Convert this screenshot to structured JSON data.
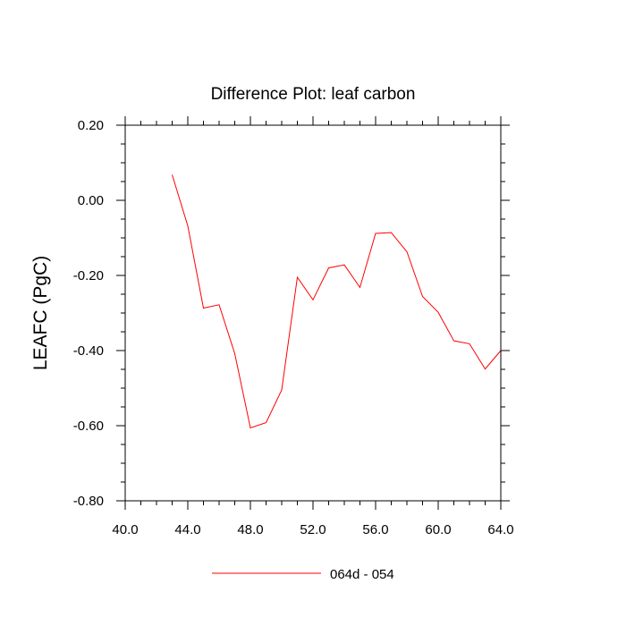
{
  "chart_data": {
    "type": "line",
    "title": "Difference Plot: leaf carbon",
    "xlabel": "",
    "ylabel": "LEAFC  (PgC)",
    "xlim": [
      40,
      64
    ],
    "ylim": [
      -0.8,
      0.2
    ],
    "x_ticks": [
      40,
      44,
      48,
      52,
      56,
      60,
      64
    ],
    "x_tick_labels": [
      "40.0",
      "44.0",
      "48.0",
      "52.0",
      "56.0",
      "60.0",
      "64.0"
    ],
    "y_ticks": [
      -0.8,
      -0.6,
      -0.4,
      -0.2,
      0.0,
      0.2
    ],
    "y_tick_labels": [
      "-0.80",
      "-0.60",
      "-0.40",
      "-0.20",
      "0.00",
      "0.20"
    ],
    "grid": false,
    "legend_position": "bottom",
    "series": [
      {
        "name": "064d - 054",
        "color": "#ff0000",
        "x": [
          43,
          44,
          45,
          46,
          47,
          48,
          49,
          50,
          51,
          52,
          53,
          54,
          55,
          56,
          57,
          58,
          59,
          60,
          61,
          62,
          63,
          64
        ],
        "y": [
          0.068,
          -0.068,
          -0.287,
          -0.278,
          -0.408,
          -0.606,
          -0.592,
          -0.505,
          -0.205,
          -0.265,
          -0.18,
          -0.172,
          -0.232,
          -0.088,
          -0.086,
          -0.137,
          -0.256,
          -0.298,
          -0.374,
          -0.382,
          -0.449,
          -0.4
        ]
      }
    ]
  }
}
